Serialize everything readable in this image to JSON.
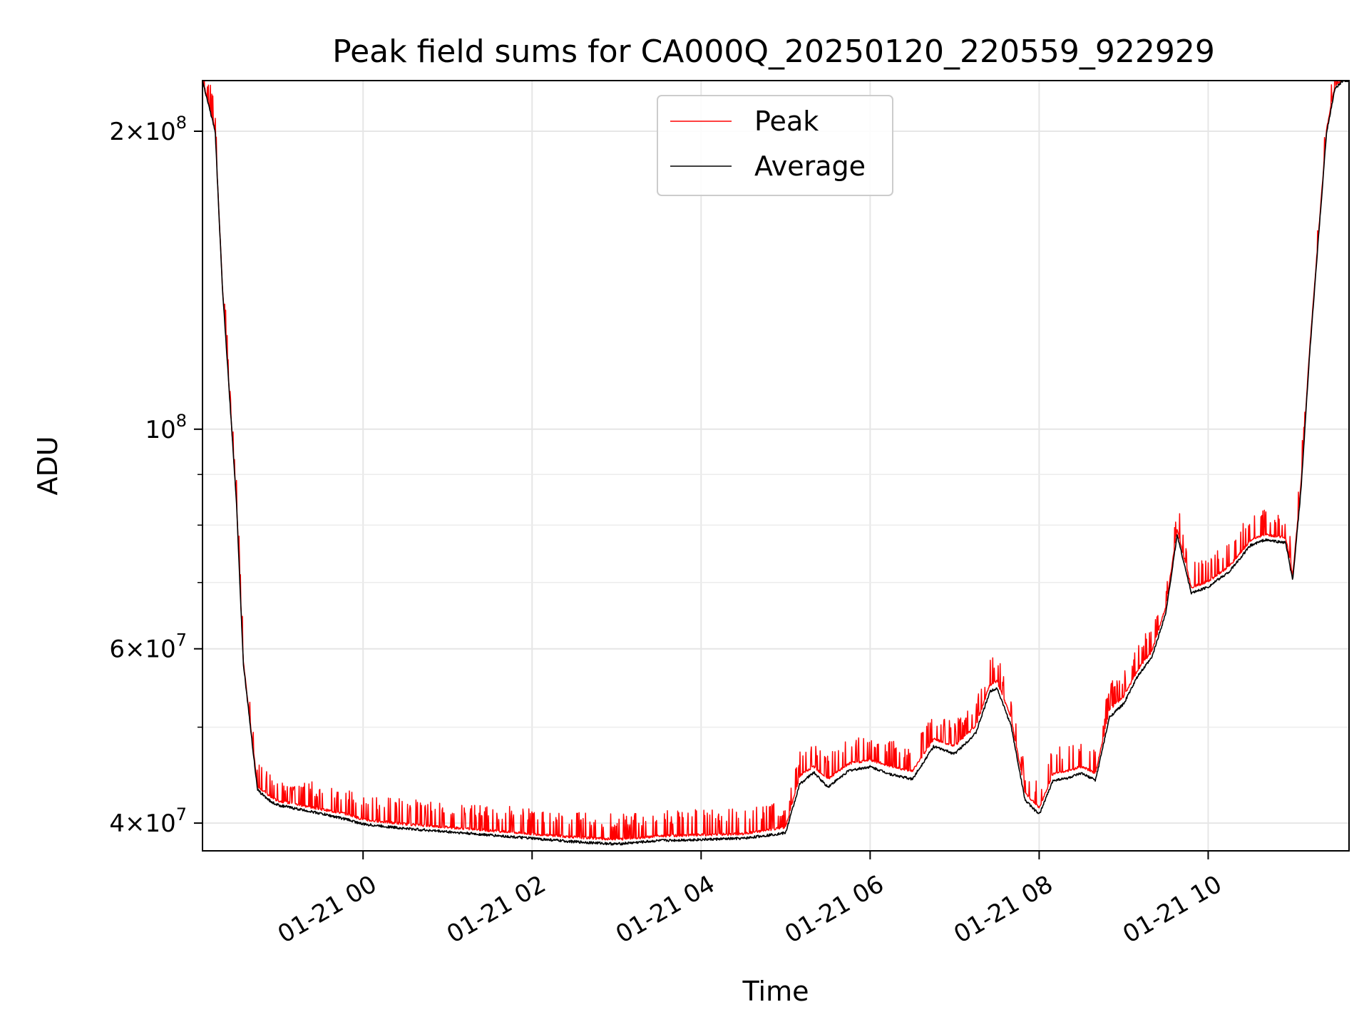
{
  "chart_data": {
    "type": "line",
    "title": "Peak field sums for CA000Q_20250120_220559_922929",
    "xlabel": "Time",
    "ylabel": "ADU",
    "yscale": "log",
    "ylim": [
      37500000,
      225000000
    ],
    "xlim": [
      "01-20 22:06",
      "01-21 11:40"
    ],
    "grid": true,
    "legend_position": "upper center",
    "x_tick_labels": [
      "01-21 00",
      "01-21 02",
      "01-21 04",
      "01-21 06",
      "01-21 08",
      "01-21 10"
    ],
    "y_tick_labels": [
      {
        "base": "2",
        "exp": "8",
        "value": 200000000
      },
      {
        "base": "",
        "exp": "8",
        "value": 100000000
      },
      {
        "base": "6",
        "exp": "7",
        "value": 60000000
      },
      {
        "base": "4",
        "exp": "7",
        "value": 40000000
      }
    ],
    "y_minor_ticks": [
      50000000,
      70000000,
      80000000,
      90000000
    ],
    "series": [
      {
        "name": "Peak",
        "color": "#ff0000",
        "spiky": true,
        "x": [
          "01-20 22:06",
          "01-20 22:15",
          "01-20 22:20",
          "01-20 22:30",
          "01-20 22:35",
          "01-20 22:45",
          "01-20 22:55",
          "01-20 23:00",
          "01-20 23:15",
          "01-20 23:30",
          "01-20 23:50",
          "01-21 00:00",
          "01-21 00:30",
          "01-21 01:00",
          "01-21 01:30",
          "01-21 02:00",
          "01-21 02:30",
          "01-21 03:00",
          "01-21 03:30",
          "01-21 04:00",
          "01-21 04:30",
          "01-21 05:00",
          "01-21 05:10",
          "01-21 05:20",
          "01-21 05:30",
          "01-21 05:45",
          "01-21 06:00",
          "01-21 06:15",
          "01-21 06:30",
          "01-21 06:45",
          "01-21 07:00",
          "01-21 07:15",
          "01-21 07:25",
          "01-21 07:30",
          "01-21 07:40",
          "01-21 07:50",
          "01-21 08:00",
          "01-21 08:10",
          "01-21 08:20",
          "01-21 08:30",
          "01-21 08:40",
          "01-21 08:50",
          "01-21 09:00",
          "01-21 09:10",
          "01-21 09:20",
          "01-21 09:30",
          "01-21 09:38",
          "01-21 09:48",
          "01-21 10:00",
          "01-21 10:15",
          "01-21 10:30",
          "01-21 10:40",
          "01-21 10:55",
          "01-21 11:00",
          "01-21 11:06",
          "01-21 11:12",
          "01-21 11:18",
          "01-21 11:24",
          "01-21 11:30",
          "01-21 11:36",
          "01-21 11:40"
        ],
        "y": [
          225000000,
          200000000,
          140000000,
          85000000,
          58000000,
          43500000,
          42300000,
          42000000,
          41600000,
          41200000,
          40700000,
          40200000,
          39800000,
          39500000,
          39200000,
          38900000,
          38600000,
          38400000,
          38700000,
          38800000,
          38900000,
          39500000,
          44500000,
          45500000,
          44200000,
          45800000,
          46200000,
          45500000,
          45000000,
          48500000,
          47700000,
          50000000,
          55000000,
          55500000,
          51000000,
          42800000,
          41300000,
          44800000,
          45000000,
          45500000,
          44800000,
          52000000,
          53500000,
          57000000,
          59500000,
          66000000,
          79000000,
          69000000,
          70000000,
          72500000,
          77000000,
          78000000,
          77500000,
          71000000,
          88000000,
          120000000,
          155000000,
          200000000,
          222000000,
          225000000,
          225000000
        ]
      },
      {
        "name": "Average",
        "color": "#000000",
        "spiky": false,
        "x": [
          "01-20 22:06",
          "01-20 22:15",
          "01-20 22:20",
          "01-20 22:30",
          "01-20 22:35",
          "01-20 22:45",
          "01-20 22:55",
          "01-20 23:00",
          "01-20 23:15",
          "01-20 23:30",
          "01-20 23:50",
          "01-21 00:00",
          "01-21 00:30",
          "01-21 01:00",
          "01-21 01:30",
          "01-21 02:00",
          "01-21 02:30",
          "01-21 03:00",
          "01-21 03:30",
          "01-21 04:00",
          "01-21 04:30",
          "01-21 05:00",
          "01-21 05:10",
          "01-21 05:20",
          "01-21 05:30",
          "01-21 05:45",
          "01-21 06:00",
          "01-21 06:15",
          "01-21 06:30",
          "01-21 06:45",
          "01-21 07:00",
          "01-21 07:15",
          "01-21 07:25",
          "01-21 07:30",
          "01-21 07:40",
          "01-21 07:50",
          "01-21 08:00",
          "01-21 08:10",
          "01-21 08:20",
          "01-21 08:30",
          "01-21 08:40",
          "01-21 08:50",
          "01-21 09:00",
          "01-21 09:10",
          "01-21 09:20",
          "01-21 09:30",
          "01-21 09:38",
          "01-21 09:48",
          "01-21 10:00",
          "01-21 10:15",
          "01-21 10:30",
          "01-21 10:40",
          "01-21 10:55",
          "01-21 11:00",
          "01-21 11:06",
          "01-21 11:12",
          "01-21 11:18",
          "01-21 11:24",
          "01-21 11:30",
          "01-21 11:36",
          "01-21 11:40"
        ],
        "y": [
          225000000,
          200000000,
          140000000,
          85000000,
          58000000,
          43200000,
          42000000,
          41700000,
          41300000,
          40900000,
          40300000,
          39900000,
          39500000,
          39200000,
          38900000,
          38600000,
          38300000,
          38100000,
          38400000,
          38500000,
          38600000,
          39100000,
          43800000,
          45000000,
          43500000,
          45200000,
          45600000,
          44800000,
          44300000,
          47800000,
          47000000,
          49300000,
          54300000,
          54800000,
          50200000,
          42200000,
          40800000,
          44200000,
          44400000,
          44900000,
          44200000,
          51200000,
          52800000,
          56300000,
          58800000,
          65300000,
          78200000,
          68300000,
          69300000,
          71800000,
          76300000,
          77300000,
          76800000,
          70300000,
          87200000,
          119000000,
          154000000,
          199000000,
          221000000,
          225000000,
          225000000
        ]
      }
    ]
  }
}
